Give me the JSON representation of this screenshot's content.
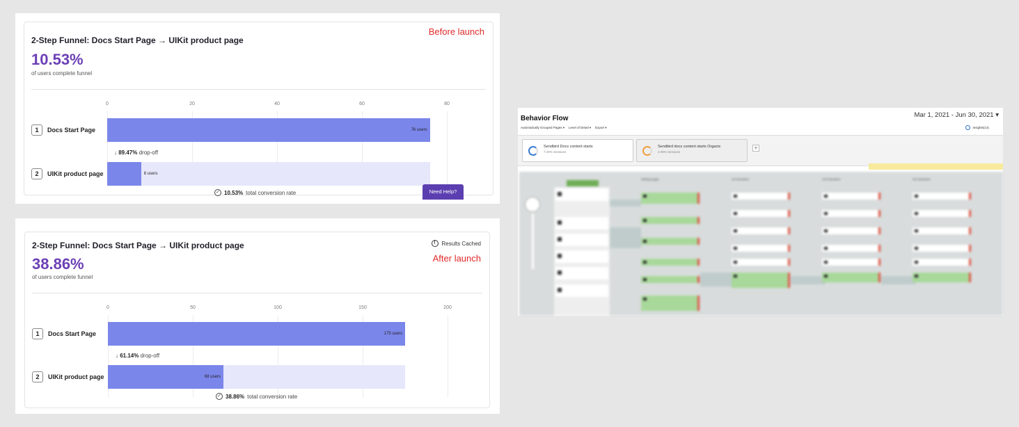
{
  "funnel_before": {
    "title": "2-Step Funnel: Docs Start Page → UIKit product page",
    "conversion": "10.53%",
    "subtitle": "of users complete funnel",
    "annotation": "Before launch",
    "axis_ticks": [
      "0",
      "20",
      "40",
      "60",
      "80"
    ],
    "axis_max": 80,
    "steps": [
      {
        "num": "1",
        "label": "Docs Start Page",
        "users": 76,
        "users_label": "76 users"
      },
      {
        "num": "2",
        "label": "UIKit product page",
        "users": 8,
        "users_label": "8 users"
      }
    ],
    "dropoff_pct": "89.47%",
    "dropoff_text": "drop-off",
    "conversion_pct": "10.53%",
    "conversion_text": "total conversion rate",
    "help_button": "Need Help?"
  },
  "funnel_after": {
    "title": "2-Step Funnel: Docs Start Page → UIKit product page",
    "conversion": "38.86%",
    "subtitle": "of users complete funnel",
    "annotation": "After launch",
    "cache_status": "Results Cached",
    "axis_ticks": [
      "0",
      "50",
      "100",
      "150",
      "200"
    ],
    "axis_max": 200,
    "steps": [
      {
        "num": "1",
        "label": "Docs Start Page",
        "users": 175,
        "users_label": "175 users"
      },
      {
        "num": "2",
        "label": "UIKit product page",
        "users": 68,
        "users_label": "68 users"
      }
    ],
    "dropoff_pct": "61.14%",
    "dropoff_text": "drop-off",
    "conversion_pct": "38.86%",
    "conversion_text": "total conversion rate"
  },
  "behavior_flow": {
    "title": "Behavior Flow",
    "date_range": "Mar 1, 2021 - Jun 30, 2021",
    "toolbar": [
      "Automatically Grouped Pages ▾",
      "Level of Detail ▾",
      "Export ▾"
    ],
    "insights": "Insights(14)",
    "segments": [
      {
        "name": "Sendbird Docs content starts",
        "sub": "7.29% Sessions"
      },
      {
        "name": "Sendbird docs content starts Organic",
        "sub": "4.09% Sessions"
      }
    ],
    "add_segment": "+",
    "columns": [
      "Starting pages",
      "1st Interaction",
      "2nd Interaction",
      "3rd Interaction"
    ]
  }
}
